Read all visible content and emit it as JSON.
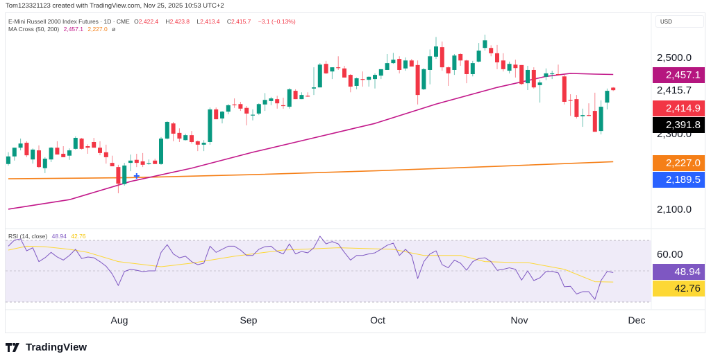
{
  "header": {
    "created_by": "Tom123321123 created with TradingView.com, Nov 25, 2025 10:53 UTC+2"
  },
  "legend": {
    "symbol": "E-Mini Russell 2000 Index Futures · 1D · CME",
    "o_label": "O",
    "o_value": "2,422.4",
    "h_label": "H",
    "h_value": "2,423.8",
    "l_label": "L",
    "l_value": "2,413.4",
    "c_label": "C",
    "c_value": "2,415.7",
    "change": "−3.1 (−0.13%)",
    "ma_name": "MA Cross (50, 200)",
    "ma_fast": "2,457.1",
    "ma_slow": "2,227.0",
    "ma_symbol": "ø",
    "rsi_name": "RSI (14, close)",
    "rsi_value": "48.94",
    "rsi_ma": "42.76"
  },
  "price_scale": {
    "currency": "USD",
    "ticks": [
      "2,500.0",
      "2,415.7",
      "2,300.0",
      "2,100.0"
    ],
    "labels": {
      "ma_fast": "2,457.1",
      "red": "2,414.9",
      "black": "2,391.8",
      "ma_slow": "2,227.0",
      "cross": "2,189.5"
    },
    "rsi_tick": "60.00",
    "rsi_value": "48.94",
    "rsi_ma": "42.76"
  },
  "time_axis": {
    "months": [
      "Aug",
      "Sep",
      "Oct",
      "Nov",
      "Dec"
    ]
  },
  "branding": {
    "logo_text": "TradingView"
  },
  "colors": {
    "up": "#089981",
    "down": "#f23645",
    "ma_fast": "#c2188a",
    "ma_slow": "#f57f17",
    "cross": "#2962ff",
    "rsi": "#7e57c2",
    "rsi_ma": "#fdd835",
    "rsi_band": "#efebf8"
  },
  "chart_data": {
    "type": "candlestick",
    "title": "E-Mini Russell 2000 Index Futures · 1D · CME",
    "ylim": [
      2054,
      2613
    ],
    "month_ticks": [
      {
        "label": "Aug",
        "index": 18.2
      },
      {
        "label": "Sep",
        "index": 39.2
      },
      {
        "label": "Oct",
        "index": 60.3
      },
      {
        "label": "Nov",
        "index": 83.6
      },
      {
        "label": "Dec",
        "index": 102.8
      }
    ],
    "ohlc": [
      [
        2221,
        2252,
        2217,
        2241
      ],
      [
        2241,
        2264,
        2230,
        2264
      ],
      [
        2264,
        2288,
        2257,
        2275
      ],
      [
        2277,
        2281,
        2239,
        2244
      ],
      [
        2233,
        2262,
        2222,
        2259
      ],
      [
        2257,
        2270,
        2210,
        2213
      ],
      [
        2210,
        2239,
        2197,
        2235
      ],
      [
        2233,
        2266,
        2226,
        2264
      ],
      [
        2264,
        2281,
        2246,
        2246
      ],
      [
        2248,
        2268,
        2239,
        2239
      ],
      [
        2243,
        2262,
        2232,
        2257
      ],
      [
        2261,
        2294,
        2259,
        2290
      ],
      [
        2288,
        2290,
        2259,
        2261
      ],
      [
        2268,
        2273,
        2248,
        2264
      ],
      [
        2279,
        2290,
        2264,
        2264
      ],
      [
        2264,
        2281,
        2244,
        2250
      ],
      [
        2252,
        2272,
        2222,
        2239
      ],
      [
        2224,
        2243,
        2215,
        2215
      ],
      [
        2213,
        2219,
        2144,
        2169
      ],
      [
        2168,
        2224,
        2164,
        2217
      ],
      [
        2224,
        2246,
        2202,
        2230
      ],
      [
        2232,
        2248,
        2213,
        2224
      ],
      [
        2228,
        2250,
        2213,
        2219
      ],
      [
        2222,
        2233,
        2219,
        2223
      ],
      [
        2230,
        2235,
        2221,
        2221
      ],
      [
        2221,
        2292,
        2219,
        2288
      ],
      [
        2288,
        2334,
        2286,
        2332
      ],
      [
        2328,
        2332,
        2281,
        2301
      ],
      [
        2303,
        2315,
        2279,
        2288
      ],
      [
        2284,
        2301,
        2283,
        2297
      ],
      [
        2297,
        2308,
        2275,
        2279
      ],
      [
        2281,
        2283,
        2255,
        2272
      ],
      [
        2272,
        2284,
        2255,
        2277
      ],
      [
        2279,
        2370,
        2272,
        2365
      ],
      [
        2365,
        2370,
        2339,
        2339
      ],
      [
        2341,
        2361,
        2328,
        2359
      ],
      [
        2359,
        2379,
        2352,
        2376
      ],
      [
        2378,
        2394,
        2369,
        2376
      ],
      [
        2379,
        2385,
        2361,
        2367
      ],
      [
        2369,
        2374,
        2323,
        2354
      ],
      [
        2350,
        2365,
        2336,
        2351
      ],
      [
        2354,
        2381,
        2350,
        2379
      ],
      [
        2378,
        2408,
        2361,
        2390
      ],
      [
        2387,
        2398,
        2376,
        2394
      ],
      [
        2392,
        2401,
        2367,
        2381
      ],
      [
        2376,
        2396,
        2367,
        2375
      ],
      [
        2372,
        2421,
        2367,
        2418
      ],
      [
        2414,
        2418,
        2392,
        2392
      ],
      [
        2392,
        2410,
        2392,
        2403
      ],
      [
        2401,
        2410,
        2398,
        2400
      ],
      [
        2420,
        2476,
        2403,
        2423
      ],
      [
        2423,
        2487,
        2423,
        2483
      ],
      [
        2485,
        2493,
        2458,
        2460
      ],
      [
        2465,
        2476,
        2445,
        2476
      ],
      [
        2476,
        2505,
        2469,
        2474
      ],
      [
        2473,
        2480,
        2449,
        2449
      ],
      [
        2456,
        2458,
        2410,
        2425
      ],
      [
        2427,
        2449,
        2418,
        2447
      ],
      [
        2445,
        2465,
        2425,
        2444
      ],
      [
        2443,
        2452,
        2425,
        2451
      ],
      [
        2445,
        2460,
        2420,
        2456
      ],
      [
        2454,
        2471,
        2445,
        2471
      ],
      [
        2469,
        2511,
        2469,
        2487
      ],
      [
        2487,
        2514,
        2485,
        2496
      ],
      [
        2498,
        2505,
        2460,
        2469
      ],
      [
        2473,
        2502,
        2467,
        2494
      ],
      [
        2494,
        2498,
        2478,
        2478
      ],
      [
        2482,
        2494,
        2378,
        2403
      ],
      [
        2418,
        2474,
        2416,
        2471
      ],
      [
        2469,
        2523,
        2431,
        2505
      ],
      [
        2504,
        2556,
        2498,
        2531
      ],
      [
        2529,
        2544,
        2467,
        2476
      ],
      [
        2476,
        2478,
        2427,
        2460
      ],
      [
        2469,
        2511,
        2456,
        2507
      ],
      [
        2511,
        2513,
        2480,
        2494
      ],
      [
        2494,
        2496,
        2434,
        2458
      ],
      [
        2458,
        2493,
        2452,
        2487
      ],
      [
        2491,
        2540,
        2489,
        2520
      ],
      [
        2527,
        2562,
        2520,
        2547
      ],
      [
        2527,
        2534,
        2505,
        2513
      ],
      [
        2513,
        2535,
        2471,
        2489
      ],
      [
        2494,
        2513,
        2465,
        2471
      ],
      [
        2467,
        2491,
        2460,
        2485
      ],
      [
        2483,
        2496,
        2449,
        2474
      ],
      [
        2482,
        2482,
        2429,
        2432
      ],
      [
        2434,
        2480,
        2416,
        2469
      ],
      [
        2469,
        2476,
        2420,
        2423
      ],
      [
        2429,
        2442,
        2383,
        2436
      ],
      [
        2451,
        2473,
        2442,
        2460
      ],
      [
        2460,
        2467,
        2445,
        2460
      ],
      [
        2458,
        2483,
        2456,
        2456
      ],
      [
        2452,
        2458,
        2378,
        2385
      ],
      [
        2390,
        2405,
        2348,
        2389
      ],
      [
        2392,
        2403,
        2341,
        2345
      ],
      [
        2347,
        2367,
        2319,
        2350
      ],
      [
        2350,
        2381,
        2347,
        2348
      ],
      [
        2361,
        2409,
        2306,
        2306
      ],
      [
        2308,
        2389,
        2299,
        2372
      ],
      [
        2383,
        2420,
        2365,
        2414
      ],
      [
        2422.4,
        2423.8,
        2413.4,
        2415.7
      ]
    ],
    "ma_fast": [
      [
        0,
        2102
      ],
      [
        10,
        2127
      ],
      [
        20,
        2175
      ],
      [
        30,
        2210
      ],
      [
        40,
        2252
      ],
      [
        50,
        2290
      ],
      [
        60,
        2328
      ],
      [
        70,
        2379
      ],
      [
        80,
        2423
      ],
      [
        88,
        2452
      ],
      [
        92,
        2460
      ],
      [
        96,
        2458
      ],
      [
        99,
        2457.1
      ]
    ],
    "ma_slow": [
      [
        0,
        2182
      ],
      [
        20,
        2185
      ],
      [
        40,
        2193
      ],
      [
        60,
        2203
      ],
      [
        80,
        2215
      ],
      [
        99,
        2227.0
      ]
    ],
    "cross_marker": {
      "index": 21,
      "price": 2189.5
    },
    "rsi": {
      "ylim": [
        30,
        70
      ],
      "levels": [
        70,
        50,
        30
      ],
      "values": [
        66,
        70,
        70.7,
        63,
        65,
        56,
        58.5,
        62,
        59,
        57,
        60,
        64,
        58,
        59,
        58.5,
        56,
        53,
        48,
        40.5,
        49.6,
        51,
        50.4,
        49.5,
        50,
        50,
        62,
        67,
        61,
        58.5,
        59.5,
        56,
        54,
        55,
        66,
        62,
        64,
        66,
        66,
        63.5,
        60,
        60,
        64,
        65.7,
        66,
        62.6,
        61,
        67.5,
        61,
        62.6,
        61.7,
        65,
        72.5,
        67.5,
        69,
        67.5,
        62,
        57,
        60,
        60,
        61,
        61.7,
        64,
        66.6,
        68,
        60,
        64,
        60,
        45,
        56,
        61,
        63,
        54,
        52,
        57,
        55,
        50.4,
        56,
        58,
        58.5,
        56,
        50.4,
        51,
        52,
        51,
        44,
        50,
        43.7,
        45.5,
        49.6,
        49.6,
        48.7,
        39.7,
        40,
        35,
        36.5,
        36.5,
        31.5,
        43.7,
        49.6,
        48.94
      ],
      "ma": [
        [
          0,
          63.5
        ],
        [
          3,
          66
        ],
        [
          6,
          65.7
        ],
        [
          10,
          64
        ],
        [
          13,
          62
        ],
        [
          18,
          56
        ],
        [
          25,
          52.7
        ],
        [
          30,
          55
        ],
        [
          37,
          59.5
        ],
        [
          40,
          61
        ],
        [
          45,
          63.5
        ],
        [
          54,
          65
        ],
        [
          63,
          64
        ],
        [
          68,
          60
        ],
        [
          74,
          60
        ],
        [
          78,
          56
        ],
        [
          83,
          55.4
        ],
        [
          85,
          55.4
        ],
        [
          91,
          51
        ],
        [
          96,
          43
        ],
        [
          99,
          42.76
        ]
      ]
    }
  }
}
